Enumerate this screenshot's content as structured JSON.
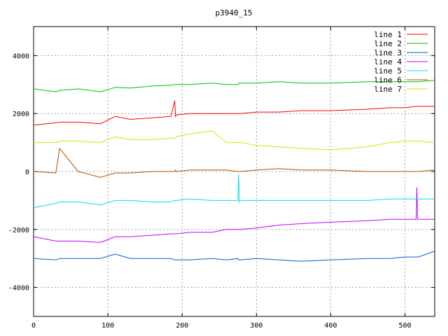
{
  "chart_data": {
    "type": "line",
    "title": "p3940_15",
    "xlabel": "",
    "ylabel": "",
    "xlim": [
      0,
      540
    ],
    "ylim": [
      -5000,
      5000
    ],
    "x_ticks": [
      0,
      100,
      200,
      300,
      400,
      500
    ],
    "y_ticks": [
      -4000,
      -2000,
      0,
      2000,
      4000
    ],
    "grid": true,
    "legend_position": "top-right",
    "x": [
      0,
      30,
      35,
      60,
      90,
      110,
      130,
      160,
      185,
      190,
      191,
      192,
      210,
      240,
      260,
      275,
      276,
      277,
      278,
      300,
      330,
      360,
      400,
      450,
      480,
      500,
      515,
      516,
      517,
      518,
      540
    ],
    "series": [
      {
        "name": "line 1",
        "color": "#ff0000",
        "values": [
          1600,
          1680,
          1700,
          1700,
          1650,
          1900,
          1800,
          1850,
          1900,
          2450,
          1900,
          1950,
          2000,
          2000,
          2000,
          2000,
          2000,
          2000,
          2000,
          2050,
          2050,
          2100,
          2100,
          2150,
          2200,
          2200,
          2250,
          2250,
          2250,
          2250,
          2250
        ]
      },
      {
        "name": "line 2",
        "color": "#00c000",
        "values": [
          2850,
          2750,
          2800,
          2850,
          2750,
          2900,
          2880,
          2950,
          2980,
          3000,
          3000,
          3000,
          3000,
          3050,
          3000,
          3000,
          3050,
          3050,
          3050,
          3050,
          3100,
          3050,
          3050,
          3100,
          3100,
          3100,
          3100,
          3100,
          3100,
          3100,
          3150
        ]
      },
      {
        "name": "line 3",
        "color": "#0060d0",
        "values": [
          -3000,
          -3050,
          -3000,
          -3000,
          -3000,
          -2850,
          -3000,
          -3000,
          -3000,
          -3050,
          -3050,
          -3050,
          -3050,
          -3000,
          -3050,
          -3000,
          -3050,
          -3050,
          -3050,
          -3000,
          -3050,
          -3100,
          -3050,
          -3000,
          -3000,
          -2950,
          -2950,
          -2950,
          -2950,
          -2950,
          -2750
        ]
      },
      {
        "name": "line 4",
        "color": "#c000ff",
        "values": [
          -2250,
          -2400,
          -2400,
          -2400,
          -2450,
          -2250,
          -2250,
          -2200,
          -2150,
          -2150,
          -2150,
          -2150,
          -2100,
          -2100,
          -2000,
          -2000,
          -2000,
          -2000,
          -2000,
          -1950,
          -1850,
          -1800,
          -1750,
          -1700,
          -1650,
          -1650,
          -1650,
          -550,
          -1650,
          -1650,
          -1650
        ]
      },
      {
        "name": "line 5",
        "color": "#00e0e0",
        "values": [
          -1250,
          -1100,
          -1050,
          -1050,
          -1150,
          -1000,
          -1000,
          -1050,
          -1050,
          -1000,
          -1000,
          -1000,
          -950,
          -1000,
          -1000,
          -1000,
          -100,
          -1050,
          -1000,
          -1000,
          -1000,
          -1000,
          -1000,
          -1000,
          -950,
          -950,
          -950,
          -950,
          -950,
          -950,
          -950
        ]
      },
      {
        "name": "line 6",
        "color": "#b05000",
        "values": [
          0,
          -50,
          800,
          0,
          -200,
          -50,
          -50,
          0,
          0,
          0,
          50,
          0,
          50,
          50,
          50,
          0,
          0,
          0,
          0,
          50,
          100,
          50,
          50,
          0,
          0,
          0,
          0,
          0,
          0,
          0,
          50
        ]
      },
      {
        "name": "line 7",
        "color": "#e0e000",
        "values": [
          1000,
          1000,
          1050,
          1050,
          1000,
          1200,
          1100,
          1100,
          1150,
          1150,
          1150,
          1200,
          1300,
          1400,
          1000,
          1000,
          1000,
          1000,
          1000,
          900,
          850,
          800,
          750,
          850,
          1000,
          1050,
          1050,
          1050,
          1050,
          1050,
          1000
        ]
      }
    ]
  }
}
